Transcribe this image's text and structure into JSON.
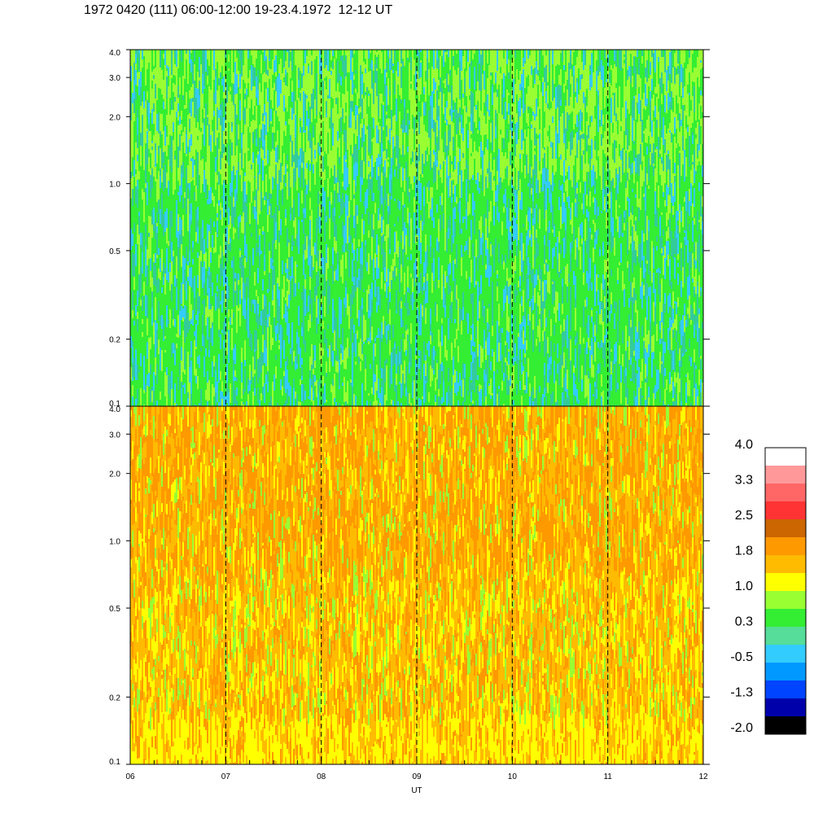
{
  "title": "1972 0420 (111) 06:00-12:00 19-23.4.1972  12-12 UT",
  "chart_data": {
    "type": "heatmap",
    "panels": [
      {
        "name": "upper",
        "y_ticks": [
          "4.0",
          "3.0",
          "2.0",
          "1.0",
          "0.5",
          "0.2",
          "0.1"
        ],
        "y_tick_values": [
          4.0,
          3.0,
          2.0,
          1.0,
          0.5,
          0.2,
          0.1
        ],
        "ylim": [
          0.1,
          4.0
        ],
        "yscale": "log",
        "dominant_colors": [
          "#33ee33",
          "#99ff33",
          "#33cc99",
          "#33ccff"
        ]
      },
      {
        "name": "lower",
        "y_ticks": [
          "4.0",
          "3.0",
          "2.0",
          "1.0",
          "0.5",
          "0.2",
          "0.1"
        ],
        "y_tick_values": [
          4.0,
          3.0,
          2.0,
          1.0,
          0.5,
          0.2,
          0.1
        ],
        "ylim": [
          0.1,
          4.0
        ],
        "yscale": "log",
        "dominant_colors": [
          "#ff9900",
          "#ffbb00",
          "#ffff00",
          "#99ff33"
        ]
      }
    ],
    "x_ticks": [
      "06",
      "07",
      "08",
      "09",
      "10",
      "11",
      "12"
    ],
    "x_tick_values": [
      6,
      7,
      8,
      9,
      10,
      11,
      12
    ],
    "xlim": [
      6,
      12
    ],
    "xlabel": "UT",
    "hour_markers": [
      7,
      8,
      9,
      10,
      11
    ],
    "colorbar": {
      "labels": [
        "4.0",
        "3.3",
        "2.5",
        "1.8",
        "1.0",
        "0.3",
        "-0.5",
        "-1.3",
        "-2.0"
      ],
      "colors_top_to_bottom": [
        "#ffffff",
        "#ff9999",
        "#ff6666",
        "#ff3333",
        "#cc6600",
        "#ff9900",
        "#ffbb00",
        "#ffff00",
        "#99ff33",
        "#33ee33",
        "#55dd99",
        "#33ccff",
        "#0099ff",
        "#0044ff",
        "#0000aa",
        "#000000"
      ]
    }
  }
}
